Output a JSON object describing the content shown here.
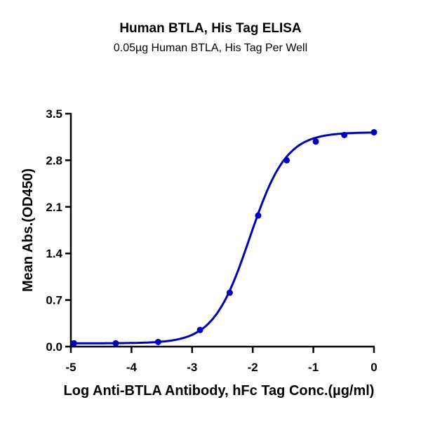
{
  "chart": {
    "title": "Human BTLA, His Tag ELISA",
    "subtitle": "0.05µg Human BTLA, His Tag Per Well",
    "colors": {
      "series": "#0000b4",
      "axis": "#000000"
    }
  },
  "chart_data": {
    "type": "scatter",
    "title": "Human BTLA, His Tag ELISA",
    "subtitle": "0.05µg Human BTLA, His Tag Per Well",
    "xlabel": "Log Anti-BTLA Antibody, hFc Tag Conc.(µg/ml)",
    "ylabel": "Mean Abs.(OD450)",
    "xlim": [
      -5,
      0
    ],
    "ylim": [
      0,
      3.5
    ],
    "xticks": [
      -5,
      -4,
      -3,
      -2,
      -1,
      0
    ],
    "yticks": [
      0.0,
      0.7,
      1.4,
      2.1,
      2.8,
      3.5
    ],
    "xtick_labels": [
      "-5",
      "-4",
      "-3",
      "-2",
      "-1",
      "0"
    ],
    "ytick_labels": [
      "0.0",
      "0.7",
      "1.4",
      "2.1",
      "2.8",
      "3.5"
    ],
    "grid": false,
    "legend": null,
    "series": [
      {
        "name": "Mean Abs.(OD450)",
        "fit": "4-parameter logistic curve",
        "x": [
          -4.95,
          -4.26,
          -3.56,
          -2.87,
          -2.38,
          -1.91,
          -1.44,
          -0.96,
          -0.49,
          0.0
        ],
        "y": [
          0.05,
          0.05,
          0.07,
          0.25,
          0.81,
          1.97,
          2.8,
          3.08,
          3.18,
          3.22
        ]
      }
    ]
  }
}
